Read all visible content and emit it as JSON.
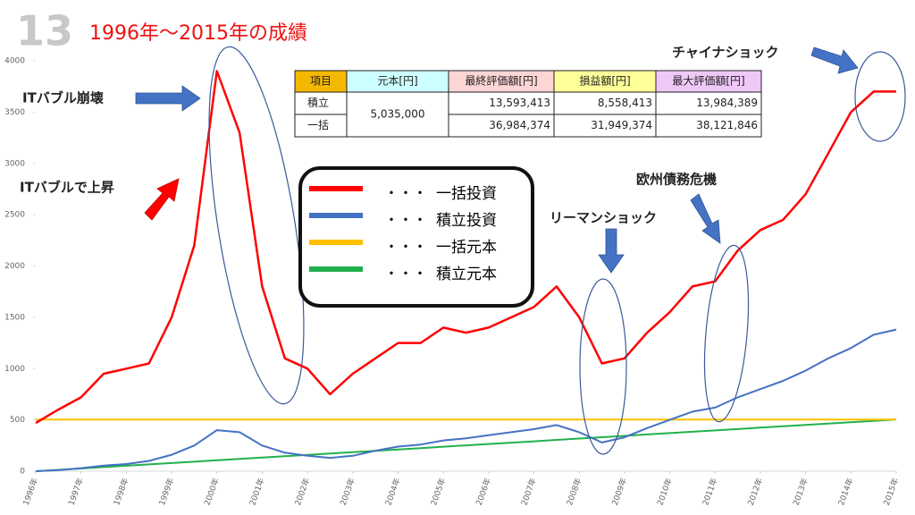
{
  "chart_data": {
    "type": "line",
    "slide_number": "13",
    "title": "1996年～2015年の成績",
    "x": [
      1996,
      1996.5,
      1997,
      1997.5,
      1998,
      1998.5,
      1999,
      1999.5,
      2000,
      2000.5,
      2001,
      2001.5,
      2002,
      2002.5,
      2003,
      2003.5,
      2004,
      2004.5,
      2005,
      2005.5,
      2006,
      2006.5,
      2007,
      2007.5,
      2008,
      2008.5,
      2009,
      2009.5,
      2010,
      2010.5,
      2011,
      2011.5,
      2012,
      2012.5,
      2013,
      2013.5,
      2014,
      2014.5,
      2015
    ],
    "xlim": [
      1996,
      2015
    ],
    "xticks": [
      {
        "value": 1996,
        "label": "1996年"
      },
      {
        "value": 1997,
        "label": "1997年"
      },
      {
        "value": 1998,
        "label": "1998年"
      },
      {
        "value": 1999,
        "label": "1999年"
      },
      {
        "value": 2000,
        "label": "2000年"
      },
      {
        "value": 2001,
        "label": "2001年"
      },
      {
        "value": 2002,
        "label": "2002年"
      },
      {
        "value": 2003,
        "label": "2003年"
      },
      {
        "value": 2004,
        "label": "2004年"
      },
      {
        "value": 2005,
        "label": "2005年"
      },
      {
        "value": 2006,
        "label": "2006年"
      },
      {
        "value": 2007,
        "label": "2007年"
      },
      {
        "value": 2008,
        "label": "2008年"
      },
      {
        "value": 2009,
        "label": "2009年"
      },
      {
        "value": 2010,
        "label": "2010年"
      },
      {
        "value": 2011,
        "label": "2011年"
      },
      {
        "value": 2012,
        "label": "2012年"
      },
      {
        "value": 2013,
        "label": "2013年"
      },
      {
        "value": 2014,
        "label": "2014年"
      },
      {
        "value": 2015,
        "label": "2015年"
      }
    ],
    "ylim": [
      0,
      4000
    ],
    "yticks": [
      0,
      500,
      1000,
      1500,
      2000,
      2500,
      3000,
      3500,
      4000
    ],
    "series": [
      {
        "name": "一括投資",
        "color": "#ff0000",
        "values": [
          470,
          600,
          720,
          950,
          1000,
          1050,
          1500,
          2200,
          3900,
          3300,
          1800,
          1100,
          1000,
          750,
          950,
          1100,
          1250,
          1250,
          1400,
          1350,
          1400,
          1500,
          1600,
          1800,
          1500,
          1050,
          1100,
          1350,
          1550,
          1800,
          1850,
          2150,
          2350,
          2450,
          2700,
          3100,
          3500,
          3700,
          3700
        ]
      },
      {
        "name": "積立投資",
        "color": "#4472c4",
        "values": [
          0,
          10,
          30,
          55,
          70,
          100,
          160,
          250,
          400,
          380,
          250,
          180,
          150,
          130,
          150,
          200,
          240,
          260,
          300,
          320,
          350,
          380,
          410,
          450,
          380,
          280,
          330,
          420,
          500,
          580,
          620,
          720,
          800,
          880,
          980,
          1100,
          1200,
          1330,
          1380
        ]
      },
      {
        "name": "一括元本",
        "color": "#ffc000",
        "values": [
          503.5,
          503.5,
          503.5,
          503.5,
          503.5,
          503.5,
          503.5,
          503.5,
          503.5,
          503.5,
          503.5,
          503.5,
          503.5,
          503.5,
          503.5,
          503.5,
          503.5,
          503.5,
          503.5,
          503.5,
          503.5,
          503.5,
          503.5,
          503.5,
          503.5,
          503.5,
          503.5,
          503.5,
          503.5,
          503.5,
          503.5,
          503.5,
          503.5,
          503.5,
          503.5,
          503.5,
          503.5,
          503.5,
          503.5
        ]
      },
      {
        "name": "積立元本",
        "color": "#22b14c",
        "values": [
          0,
          13.25,
          26.5,
          39.75,
          53,
          66.25,
          79.5,
          92.75,
          106,
          119.25,
          132.5,
          145.75,
          159,
          172.25,
          185.5,
          198.75,
          212,
          225.25,
          238.5,
          251.75,
          265,
          278.25,
          291.5,
          304.75,
          318,
          331.25,
          344.5,
          357.75,
          371,
          384.25,
          397.5,
          410.75,
          424,
          437.25,
          450.5,
          463.75,
          477,
          490.25,
          503.5
        ]
      }
    ],
    "annotations": [
      "ITバブル崩壊",
      "ITバブルで上昇",
      "リーマンショック",
      "欧州債務危機",
      "チャイナショック"
    ],
    "table": {
      "columns": [
        "項目",
        "元本[円]",
        "最終評価額[円]",
        "損益額[円]",
        "最大評価額[円]"
      ],
      "principal": "5,035,000",
      "rows": [
        [
          "積立",
          "13,593,413",
          "8,558,413",
          "13,984,389"
        ],
        [
          "一括",
          "36,984,374",
          "31,949,374",
          "38,121,846"
        ]
      ]
    }
  }
}
